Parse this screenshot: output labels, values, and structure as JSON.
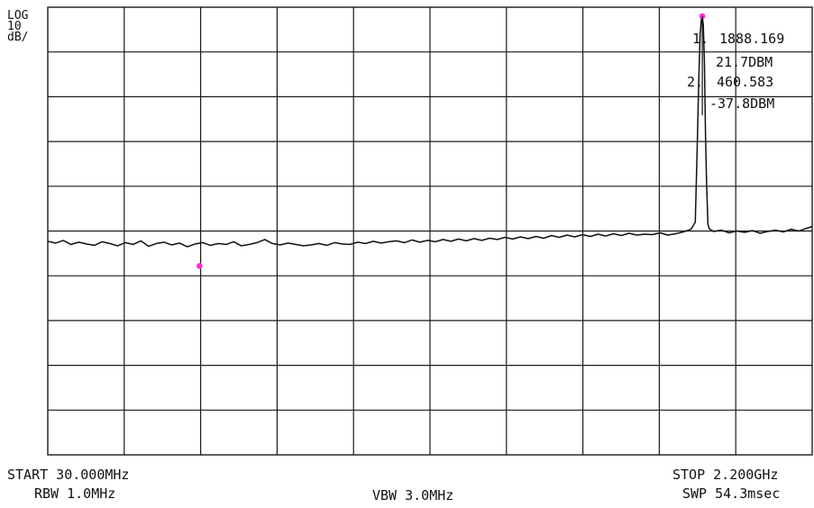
{
  "screen": {
    "scale_lines": [
      "LOG",
      "10",
      "dB/"
    ],
    "start": "START 30.000MHz",
    "stop": "STOP 2.200GHz",
    "rbw": "RBW 1.0MHz",
    "vbw": "VBW 3.0MHz",
    "sweep": "SWP 54.3msec"
  },
  "colors": {
    "grid": "#1a1a1a",
    "trace": "#111111",
    "marker": "#ff2bd6",
    "background": "#ffffff"
  },
  "chart_data": {
    "type": "line",
    "x_unit": "MHz",
    "y_unit": "dBm",
    "xlim": [
      30,
      2200
    ],
    "ylim": [
      -80,
      20
    ],
    "grid": true,
    "grid_divisions": {
      "x": 10,
      "y": 10
    },
    "markers": [
      {
        "label": "1.",
        "freq_text": "1888.169",
        "level_text": "21.7DBM",
        "x": 1888.169,
        "y": 21.7
      },
      {
        "label": "2.",
        "freq_text": "460.583",
        "level_text": "-37.8DBM",
        "x": 460.583,
        "y": -37.8
      }
    ],
    "series": [
      {
        "values": [
          [
            30,
            -32.3
          ],
          [
            52,
            -32.7
          ],
          [
            74,
            -32.1
          ],
          [
            96,
            -33.0
          ],
          [
            118,
            -32.5
          ],
          [
            140,
            -32.9
          ],
          [
            162,
            -33.2
          ],
          [
            184,
            -32.4
          ],
          [
            206,
            -32.8
          ],
          [
            228,
            -33.3
          ],
          [
            250,
            -32.6
          ],
          [
            272,
            -33.0
          ],
          [
            294,
            -32.2
          ],
          [
            316,
            -33.4
          ],
          [
            338,
            -32.8
          ],
          [
            360,
            -32.5
          ],
          [
            382,
            -33.1
          ],
          [
            404,
            -32.7
          ],
          [
            426,
            -33.5
          ],
          [
            448,
            -32.9
          ],
          [
            470,
            -32.6
          ],
          [
            492,
            -33.2
          ],
          [
            514,
            -32.8
          ],
          [
            536,
            -33.0
          ],
          [
            558,
            -32.4
          ],
          [
            580,
            -33.3
          ],
          [
            602,
            -33.0
          ],
          [
            624,
            -32.6
          ],
          [
            646,
            -31.9
          ],
          [
            668,
            -32.8
          ],
          [
            690,
            -33.1
          ],
          [
            712,
            -32.7
          ],
          [
            734,
            -33.0
          ],
          [
            756,
            -33.3
          ],
          [
            778,
            -33.1
          ],
          [
            800,
            -32.8
          ],
          [
            822,
            -33.2
          ],
          [
            844,
            -32.6
          ],
          [
            866,
            -32.9
          ],
          [
            888,
            -33.0
          ],
          [
            910,
            -32.5
          ],
          [
            932,
            -32.8
          ],
          [
            954,
            -32.3
          ],
          [
            976,
            -32.7
          ],
          [
            998,
            -32.4
          ],
          [
            1020,
            -32.2
          ],
          [
            1042,
            -32.6
          ],
          [
            1064,
            -32.0
          ],
          [
            1086,
            -32.5
          ],
          [
            1108,
            -32.1
          ],
          [
            1130,
            -32.4
          ],
          [
            1152,
            -31.9
          ],
          [
            1174,
            -32.3
          ],
          [
            1196,
            -31.8
          ],
          [
            1218,
            -32.2
          ],
          [
            1240,
            -31.7
          ],
          [
            1262,
            -32.1
          ],
          [
            1284,
            -31.6
          ],
          [
            1306,
            -31.9
          ],
          [
            1328,
            -31.4
          ],
          [
            1350,
            -31.8
          ],
          [
            1372,
            -31.3
          ],
          [
            1394,
            -31.7
          ],
          [
            1416,
            -31.2
          ],
          [
            1438,
            -31.6
          ],
          [
            1460,
            -31.0
          ],
          [
            1482,
            -31.4
          ],
          [
            1504,
            -30.9
          ],
          [
            1526,
            -31.3
          ],
          [
            1548,
            -30.8
          ],
          [
            1570,
            -31.2
          ],
          [
            1592,
            -30.7
          ],
          [
            1614,
            -31.1
          ],
          [
            1636,
            -30.6
          ],
          [
            1658,
            -31.0
          ],
          [
            1680,
            -30.5
          ],
          [
            1702,
            -30.9
          ],
          [
            1724,
            -30.7
          ],
          [
            1746,
            -30.8
          ],
          [
            1768,
            -30.4
          ],
          [
            1790,
            -30.9
          ],
          [
            1812,
            -30.6
          ],
          [
            1834,
            -30.2
          ],
          [
            1856,
            -29.6
          ],
          [
            1868,
            -28.0
          ],
          [
            1874,
            -10.0
          ],
          [
            1878,
            4.0
          ],
          [
            1882,
            14.0
          ],
          [
            1886,
            19.5
          ],
          [
            1888.169,
            21.7
          ],
          [
            1891,
            16.0
          ],
          [
            1894,
            8.0
          ],
          [
            1897,
            -8.0
          ],
          [
            1900,
            -19.0
          ],
          [
            1904,
            -28.5
          ],
          [
            1908,
            -29.5
          ],
          [
            1920,
            -30.1
          ],
          [
            1942,
            -29.8
          ],
          [
            1964,
            -30.4
          ],
          [
            1986,
            -30.0
          ],
          [
            2008,
            -30.3
          ],
          [
            2030,
            -29.9
          ],
          [
            2052,
            -30.5
          ],
          [
            2074,
            -30.1
          ],
          [
            2096,
            -29.8
          ],
          [
            2118,
            -30.2
          ],
          [
            2140,
            -29.6
          ],
          [
            2162,
            -30.0
          ],
          [
            2184,
            -29.4
          ],
          [
            2200,
            -29.0
          ]
        ]
      }
    ]
  }
}
